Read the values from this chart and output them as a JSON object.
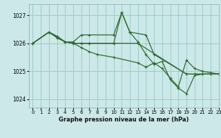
{
  "bg_color": "#cce8e8",
  "grid_color": "#99cccc",
  "line_color": "#2d6a2d",
  "title": "Graphe pression niveau de la mer (hPa)",
  "xlim": [
    -0.5,
    23
  ],
  "ylim": [
    1023.7,
    1027.4
  ],
  "yticks": [
    1024,
    1025,
    1026,
    1027
  ],
  "xticks": [
    0,
    1,
    2,
    3,
    4,
    5,
    6,
    7,
    8,
    9,
    10,
    11,
    12,
    13,
    14,
    15,
    16,
    17,
    18,
    19,
    20,
    21,
    22,
    23
  ],
  "lines": [
    {
      "x": [
        0,
        2,
        3,
        4,
        5,
        6,
        7,
        10,
        13,
        19,
        20,
        21,
        22,
        23
      ],
      "y": [
        1026.0,
        1026.4,
        1026.25,
        1026.05,
        1026.0,
        1026.0,
        1026.0,
        1026.0,
        1026.0,
        1024.9,
        1024.9,
        1024.9,
        1024.9,
        1024.9
      ]
    },
    {
      "x": [
        0,
        2,
        3,
        4,
        5,
        6,
        7,
        8,
        10,
        13,
        14,
        15,
        16,
        17,
        18,
        19,
        20,
        21,
        22,
        23
      ],
      "y": [
        1026.0,
        1026.4,
        1026.2,
        1026.05,
        1026.0,
        1025.85,
        1025.7,
        1025.6,
        1025.5,
        1025.3,
        1025.15,
        1025.3,
        1025.1,
        1024.75,
        1024.45,
        1025.4,
        1025.1,
        1025.0,
        1024.95,
        1024.9
      ]
    },
    {
      "x": [
        0,
        2,
        3,
        4,
        5,
        6,
        7,
        10,
        11,
        12,
        13,
        14,
        15,
        16,
        17,
        18,
        19,
        20,
        21,
        22,
        23
      ],
      "y": [
        1026.0,
        1026.4,
        1026.2,
        1026.05,
        1026.0,
        1026.0,
        1026.0,
        1026.0,
        1027.1,
        1026.4,
        1026.05,
        1025.6,
        1025.25,
        1025.35,
        1024.7,
        1024.4,
        1024.2,
        1024.85,
        1024.9,
        1024.9,
        1024.9
      ]
    },
    {
      "x": [
        0,
        2,
        3,
        4,
        5,
        6,
        7,
        10,
        11,
        12,
        14,
        15,
        19,
        20,
        21,
        22,
        23
      ],
      "y": [
        1026.0,
        1026.4,
        1026.25,
        1026.05,
        1026.05,
        1026.3,
        1026.3,
        1026.3,
        1027.1,
        1026.4,
        1026.3,
        1025.6,
        1024.9,
        1024.9,
        1024.9,
        1024.9,
        1024.9
      ]
    }
  ]
}
